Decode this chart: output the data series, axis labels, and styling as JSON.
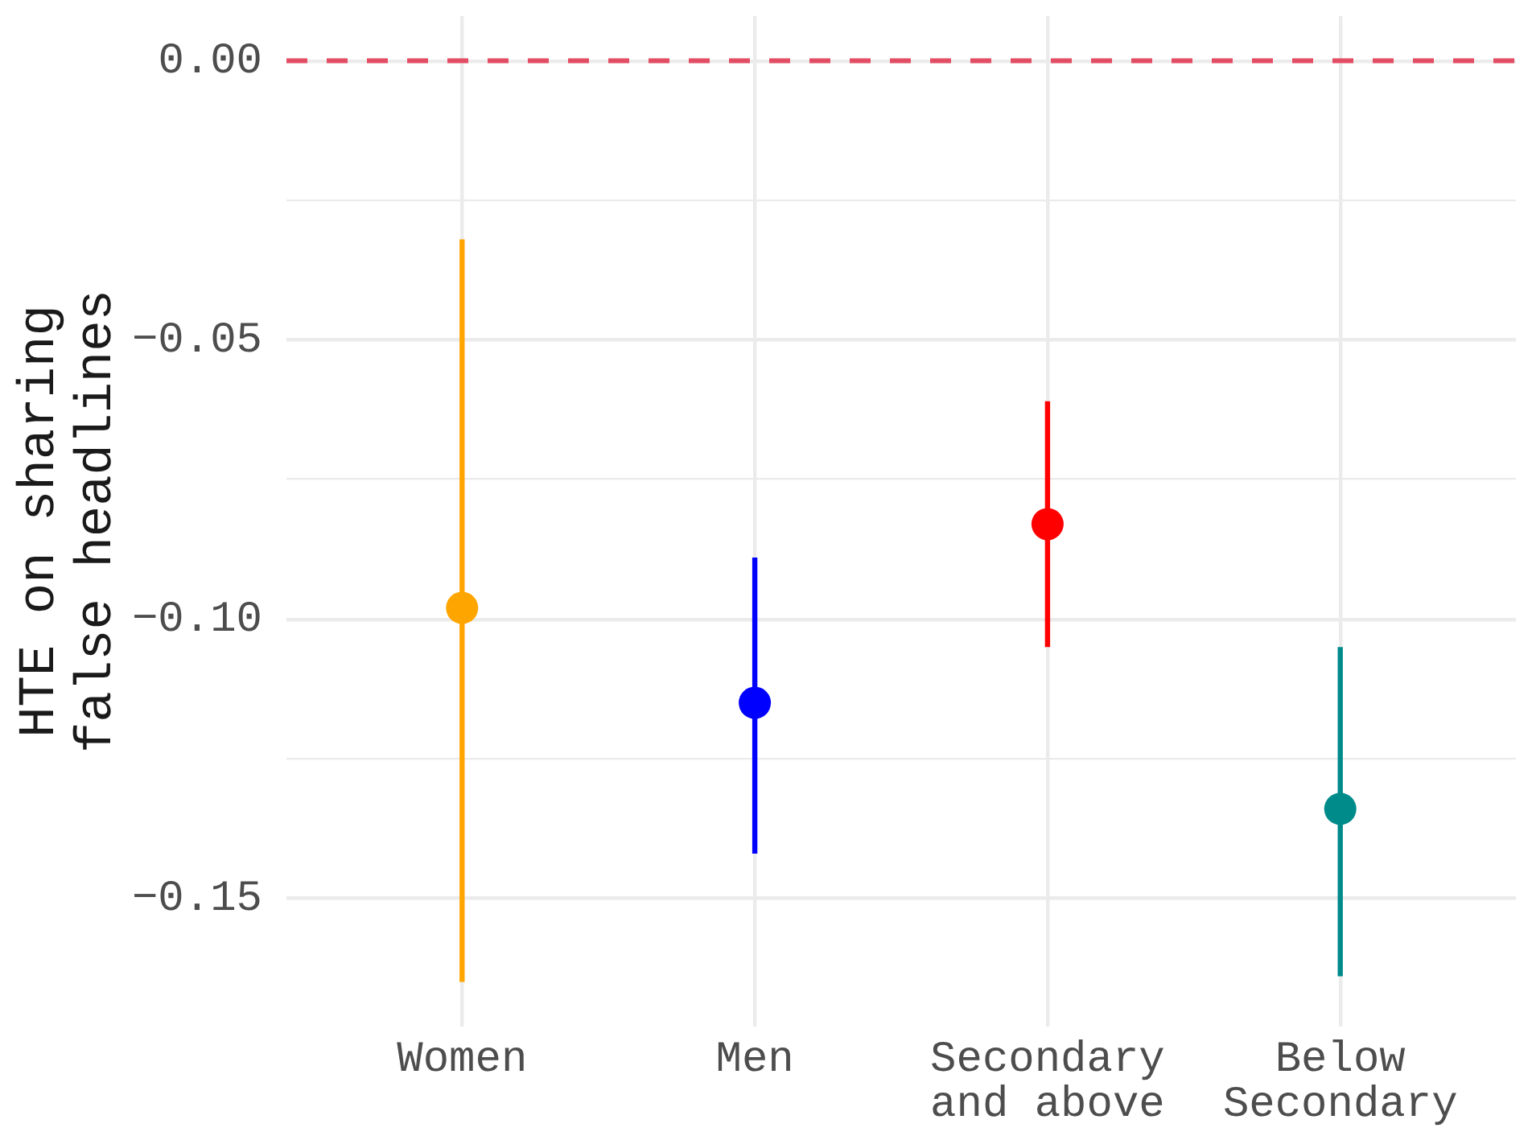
{
  "chart_data": {
    "type": "scatter",
    "ylabel": "HTE on sharing\nfalse headlines",
    "categories": [
      "Women",
      "Men",
      "Secondary\nand above",
      "Below\nSecondary"
    ],
    "values": [
      -0.098,
      -0.115,
      -0.083,
      -0.134
    ],
    "colors": [
      "#ffa500",
      "#0000ff",
      "#ff0000",
      "#008b8b"
    ],
    "errors": [
      [
        -0.165,
        -0.032
      ],
      [
        -0.142,
        -0.089
      ],
      [
        -0.105,
        -0.061
      ],
      [
        -0.164,
        -0.105
      ]
    ],
    "ylim": [
      -0.173,
      0.008
    ],
    "yticks": [
      {
        "value": 0,
        "label": "0.00"
      },
      {
        "value": -0.025,
        "label": null
      },
      {
        "value": -0.05,
        "label": "−0.05"
      },
      {
        "value": -0.075,
        "label": null
      },
      {
        "value": -0.1,
        "label": "−0.10"
      },
      {
        "value": -0.125,
        "label": null
      },
      {
        "value": -0.15,
        "label": "−0.15"
      }
    ],
    "grid": true,
    "legend": false,
    "marker": "circle",
    "ref_lines": [
      {
        "axis": "y",
        "value": 0,
        "color": "#e34d64",
        "line_style": "dashed"
      }
    ]
  }
}
